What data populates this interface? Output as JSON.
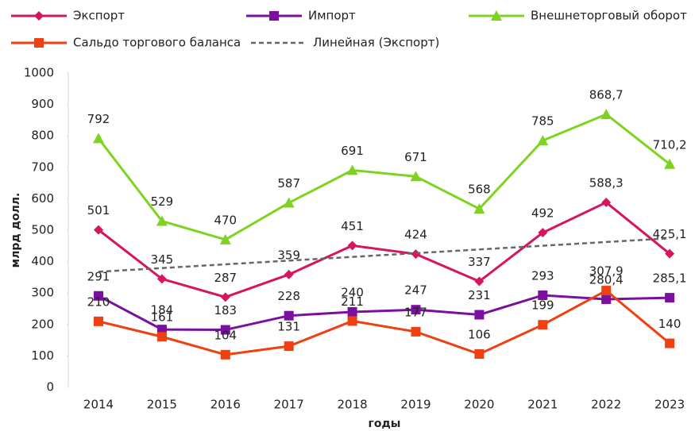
{
  "chart_data": {
    "type": "line",
    "x_label": "годы",
    "y_label": "млрд долл.",
    "categories": [
      "2014",
      "2015",
      "2016",
      "2017",
      "2018",
      "2019",
      "2020",
      "2021",
      "2022",
      "2023"
    ],
    "series": [
      {
        "name": "Экспорт",
        "color": "#d6145f",
        "marker": "diamond",
        "values": [
          501,
          345,
          287,
          359,
          451,
          424,
          337,
          492,
          588.3,
          425.1
        ],
        "value_labels": [
          "501",
          "345",
          "287",
          "359",
          "451",
          "424",
          "337",
          "492",
          "588,3",
          "425,1"
        ]
      },
      {
        "name": "Импорт",
        "color": "#7a0fa0",
        "marker": "square",
        "values": [
          291,
          184,
          183,
          228,
          240,
          247,
          231,
          293,
          280.4,
          285.1
        ],
        "value_labels": [
          "291",
          "184",
          "183",
          "228",
          "240",
          "247",
          "231",
          "293",
          "280,4",
          "285,1"
        ]
      },
      {
        "name": "Внешнеторговый оборот",
        "color": "#7ed321",
        "marker": "triangle",
        "values": [
          792,
          529,
          470,
          587,
          691,
          671,
          568,
          785,
          868.7,
          710.2
        ],
        "value_labels": [
          "792",
          "529",
          "470",
          "587",
          "691",
          "671",
          "568",
          "785",
          "868,7",
          "710,2"
        ]
      },
      {
        "name": "Сальдо торгового баланса",
        "color": "#ee4010",
        "marker": "square",
        "values": [
          210,
          161,
          104,
          131,
          211,
          177,
          106,
          199,
          307.9,
          140
        ],
        "value_labels": [
          "210",
          "161",
          "104",
          "131",
          "211",
          "177",
          "106",
          "199",
          "307,9",
          "140"
        ]
      },
      {
        "name": "Линейная (Экспорт)",
        "color": "#666666",
        "dashed": true,
        "values": [
          367.7,
          379.5,
          391.4,
          403.2,
          415.0,
          426.9,
          438.7,
          450.5,
          462.4,
          474.2
        ]
      }
    ],
    "ylim": [
      0,
      1000
    ],
    "yticks": [
      0,
      100,
      200,
      300,
      400,
      500,
      600,
      700,
      800,
      900,
      1000
    ],
    "grid": false
  }
}
